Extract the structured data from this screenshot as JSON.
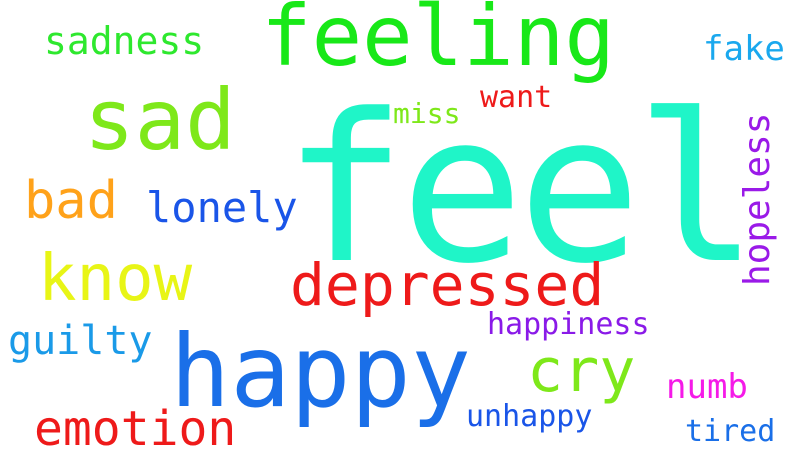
{
  "words": [
    {
      "text": "feel",
      "color": "#1ff5c8"
    },
    {
      "text": "feeling",
      "color": "#18e818"
    },
    {
      "text": "sad",
      "color": "#7ee81a"
    },
    {
      "text": "happy",
      "color": "#1a6fe8"
    },
    {
      "text": "depressed",
      "color": "#ee1a1a"
    },
    {
      "text": "know",
      "color": "#e8f516"
    },
    {
      "text": "cry",
      "color": "#7ee81a"
    },
    {
      "text": "bad",
      "color": "#ffa21a"
    },
    {
      "text": "lonely",
      "color": "#1a55e8"
    },
    {
      "text": "emotion",
      "color": "#ee1a1a"
    },
    {
      "text": "sadness",
      "color": "#2ee82e"
    },
    {
      "text": "hopeless",
      "color": "#9a1ae8"
    },
    {
      "text": "guilty",
      "color": "#1a9ae8"
    },
    {
      "text": "happiness",
      "color": "#8a1ae8"
    },
    {
      "text": "want",
      "color": "#ee1a1a"
    },
    {
      "text": "miss",
      "color": "#7ee81a"
    },
    {
      "text": "fake",
      "color": "#1aa8ee"
    },
    {
      "text": "numb",
      "color": "#f51ae8"
    },
    {
      "text": "unhappy",
      "color": "#1a55e8"
    },
    {
      "text": "tired",
      "color": "#1a6fe8"
    }
  ]
}
